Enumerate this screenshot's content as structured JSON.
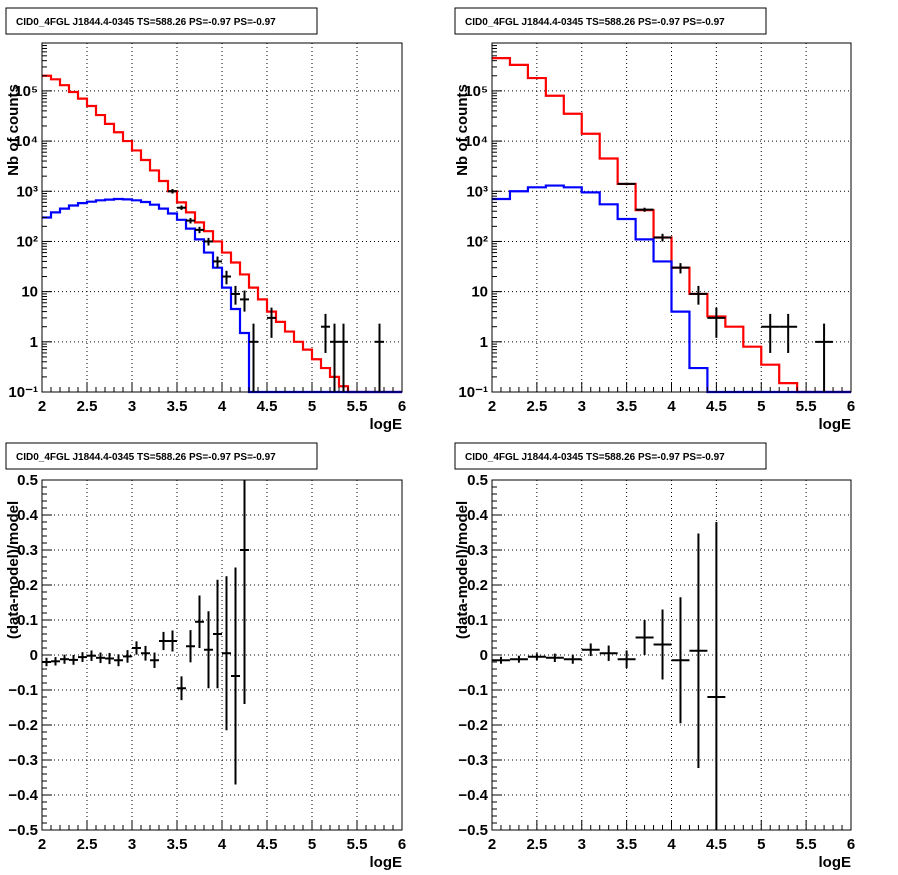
{
  "colors": {
    "model_total": "#ff0000",
    "model_source": "#0000ff",
    "data": "#000000"
  },
  "chart_data": [
    {
      "type": "histogram",
      "title": "CID0_4FGL J1844.4-0345 TS=588.26 PS=-0.97 PS=-0.97",
      "xlabel": "logE",
      "ylabel": "Nb of counts",
      "log_y": true,
      "xlim": [
        2,
        6
      ],
      "ylim": [
        0.1,
        900000
      ],
      "grid": true,
      "x_ticks": [
        2,
        2.5,
        3,
        3.5,
        4,
        4.5,
        5,
        5.5,
        6
      ],
      "x_tick_labels": [
        "2",
        "2.5",
        "3",
        "3.5",
        "4",
        "4.5",
        "5",
        "5.5",
        "6"
      ],
      "y_ticks": [
        0.1,
        1,
        10,
        100,
        1000,
        10000,
        100000
      ],
      "y_tick_labels": [
        "10⁻¹",
        "1",
        "10",
        "10²",
        "10³",
        "10⁴",
        "10⁵"
      ],
      "bin_edges": [
        2.0,
        2.1,
        2.2,
        2.3,
        2.4,
        2.5,
        2.6,
        2.7,
        2.8,
        2.9,
        3.0,
        3.1,
        3.2,
        3.3,
        3.4,
        3.5,
        3.6,
        3.7,
        3.8,
        3.9,
        4.0,
        4.1,
        4.2,
        4.3,
        4.4,
        4.5,
        4.6,
        4.7,
        4.8,
        4.9,
        5.0,
        5.1,
        5.2,
        5.3,
        5.4,
        5.5,
        5.6,
        5.7,
        5.8,
        5.9,
        6.0
      ],
      "series": [
        {
          "role": "model_total",
          "color": "#ff0000",
          "values": [
            200000,
            170000,
            130000,
            95000,
            70000,
            50000,
            33000,
            22000,
            15000,
            10000,
            6500,
            4200,
            2600,
            1600,
            1000,
            600,
            380,
            240,
            160,
            100,
            60,
            38,
            22,
            12,
            7,
            4,
            2.5,
            1.6,
            1,
            0.7,
            0.45,
            0.3,
            0.2,
            0.13,
            0.1,
            0.1,
            0.1,
            0.1,
            0.1,
            0.1
          ]
        },
        {
          "role": "model_source",
          "color": "#0000ff",
          "values": [
            300,
            380,
            450,
            520,
            580,
            620,
            660,
            680,
            700,
            690,
            660,
            610,
            540,
            450,
            360,
            270,
            180,
            110,
            60,
            30,
            12,
            4.5,
            1.5,
            0.1,
            0.1,
            0.1,
            0.1,
            0.1,
            0.1,
            0.1,
            0.1,
            0.1,
            0.1,
            0.1,
            0.1,
            0.1,
            0.1,
            0.1,
            0.1,
            0.1
          ]
        },
        {
          "role": "data",
          "color": "#000000",
          "type": "errorbar",
          "points": [
            {
              "x": 3.45,
              "y": 1000,
              "ylo": 900,
              "yhi": 1110
            },
            {
              "x": 3.55,
              "y": 470,
              "ylo": 425,
              "yhi": 520
            },
            {
              "x": 3.65,
              "y": 260,
              "ylo": 228,
              "yhi": 292
            },
            {
              "x": 3.75,
              "y": 170,
              "ylo": 146,
              "yhi": 196
            },
            {
              "x": 3.85,
              "y": 100,
              "ylo": 83,
              "yhi": 118
            },
            {
              "x": 3.95,
              "y": 40,
              "ylo": 30,
              "yhi": 50
            },
            {
              "x": 4.05,
              "y": 20,
              "ylo": 14,
              "yhi": 26
            },
            {
              "x": 4.15,
              "y": 9,
              "ylo": 5.5,
              "yhi": 13
            },
            {
              "x": 4.25,
              "y": 7,
              "ylo": 4,
              "yhi": 10.5
            },
            {
              "x": 4.35,
              "y": 1,
              "ylo": 0.1,
              "yhi": 2.3
            },
            {
              "x": 4.55,
              "y": 3,
              "ylo": 1.2,
              "yhi": 4.8
            },
            {
              "x": 5.15,
              "y": 2,
              "ylo": 0.6,
              "yhi": 3.6
            },
            {
              "x": 5.25,
              "y": 1,
              "ylo": 0.1,
              "yhi": 2.3
            },
            {
              "x": 5.35,
              "y": 1,
              "ylo": 0.1,
              "yhi": 2.3
            },
            {
              "x": 5.75,
              "y": 1,
              "ylo": 0.1,
              "yhi": 2.3
            }
          ]
        }
      ]
    },
    {
      "type": "histogram",
      "title": "CID0_4FGL J1844.4-0345 TS=588.26 PS=-0.97 PS=-0.97",
      "xlabel": "logE",
      "ylabel": "Nb of counts",
      "log_y": true,
      "xlim": [
        2,
        6
      ],
      "ylim": [
        0.1,
        900000
      ],
      "grid": true,
      "x_ticks": [
        2,
        2.5,
        3,
        3.5,
        4,
        4.5,
        5,
        5.5,
        6
      ],
      "x_tick_labels": [
        "2",
        "2.5",
        "3",
        "3.5",
        "4",
        "4.5",
        "5",
        "5.5",
        "6"
      ],
      "y_ticks": [
        0.1,
        1,
        10,
        100,
        1000,
        10000,
        100000
      ],
      "y_tick_labels": [
        "10⁻¹",
        "1",
        "10",
        "10²",
        "10³",
        "10⁴",
        "10⁵"
      ],
      "bin_edges": [
        2.0,
        2.2,
        2.4,
        2.6,
        2.8,
        3.0,
        3.2,
        3.4,
        3.6,
        3.8,
        4.0,
        4.2,
        4.4,
        4.6,
        4.8,
        5.0,
        5.2,
        5.4,
        5.6,
        5.8,
        6.0
      ],
      "series": [
        {
          "role": "model_total",
          "color": "#ff0000",
          "values": [
            450000,
            330000,
            180000,
            80000,
            35000,
            14000,
            4500,
            1400,
            420,
            120,
            30,
            9,
            3.2,
            2,
            0.8,
            0.35,
            0.15,
            0.1,
            0.1,
            0.1
          ]
        },
        {
          "role": "model_source",
          "color": "#0000ff",
          "values": [
            700,
            1000,
            1200,
            1300,
            1200,
            950,
            550,
            280,
            110,
            40,
            4,
            0.3,
            0.1,
            0.1,
            0.1,
            0.1,
            0.1,
            0.1,
            0.1,
            0.1
          ]
        },
        {
          "role": "data",
          "color": "#000000",
          "type": "errorbar",
          "points": [
            {
              "x": 3.5,
              "y": 1400,
              "ylo": 1320,
              "yhi": 1480
            },
            {
              "x": 3.7,
              "y": 430,
              "ylo": 390,
              "yhi": 470
            },
            {
              "x": 3.9,
              "y": 120,
              "ylo": 100,
              "yhi": 142
            },
            {
              "x": 4.1,
              "y": 30,
              "ylo": 23,
              "yhi": 37
            },
            {
              "x": 4.3,
              "y": 9,
              "ylo": 5.5,
              "yhi": 13
            },
            {
              "x": 4.5,
              "y": 3,
              "ylo": 1.2,
              "yhi": 4.8
            },
            {
              "x": 5.1,
              "y": 2,
              "ylo": 0.6,
              "yhi": 3.6
            },
            {
              "x": 5.3,
              "y": 2,
              "ylo": 0.6,
              "yhi": 3.6
            },
            {
              "x": 5.7,
              "y": 1,
              "ylo": 0.1,
              "yhi": 2.3
            }
          ]
        }
      ]
    },
    {
      "type": "errorbar",
      "title": "CID0_4FGL J1844.4-0345 TS=588.26 PS=-0.97 PS=-0.97",
      "xlabel": "logE",
      "ylabel": "(data-model)/model",
      "log_y": false,
      "xlim": [
        2,
        6
      ],
      "ylim": [
        -0.5,
        0.5
      ],
      "grid": true,
      "x_ticks": [
        2,
        2.5,
        3,
        3.5,
        4,
        4.5,
        5,
        5.5,
        6
      ],
      "x_tick_labels": [
        "2",
        "2.5",
        "3",
        "3.5",
        "4",
        "4.5",
        "5",
        "5.5",
        "6"
      ],
      "y_ticks": [
        -0.5,
        -0.4,
        -0.3,
        -0.2,
        -0.1,
        0,
        0.1,
        0.2,
        0.3,
        0.4,
        0.5
      ],
      "y_tick_labels": [
        "−0.5",
        "−0.4",
        "−0.3",
        "−0.2",
        "−0.1",
        "0",
        "0.1",
        "0.2",
        "0.3",
        "0.4",
        "0.5"
      ],
      "series": [
        {
          "role": "data",
          "color": "#000000",
          "points": [
            {
              "x": 2.05,
              "y": -0.02,
              "err": 0.012
            },
            {
              "x": 2.15,
              "y": -0.018,
              "err": 0.012
            },
            {
              "x": 2.25,
              "y": -0.012,
              "err": 0.013
            },
            {
              "x": 2.35,
              "y": -0.014,
              "err": 0.014
            },
            {
              "x": 2.45,
              "y": -0.006,
              "err": 0.014
            },
            {
              "x": 2.55,
              "y": -0.002,
              "err": 0.015
            },
            {
              "x": 2.65,
              "y": -0.008,
              "err": 0.015
            },
            {
              "x": 2.75,
              "y": -0.01,
              "err": 0.016
            },
            {
              "x": 2.85,
              "y": -0.015,
              "err": 0.017
            },
            {
              "x": 2.95,
              "y": -0.004,
              "err": 0.018
            },
            {
              "x": 3.05,
              "y": 0.02,
              "err": 0.019
            },
            {
              "x": 3.15,
              "y": 0.005,
              "err": 0.021
            },
            {
              "x": 3.25,
              "y": -0.015,
              "err": 0.022
            },
            {
              "x": 3.35,
              "y": 0.04,
              "err": 0.026
            },
            {
              "x": 3.45,
              "y": 0.04,
              "err": 0.03
            },
            {
              "x": 3.55,
              "y": -0.095,
              "err": 0.034
            },
            {
              "x": 3.65,
              "y": 0.025,
              "err": 0.046
            },
            {
              "x": 3.75,
              "y": 0.095,
              "err": 0.075
            },
            {
              "x": 3.85,
              "y": 0.015,
              "err": 0.11
            },
            {
              "x": 3.95,
              "y": 0.06,
              "err": 0.155
            },
            {
              "x": 4.05,
              "y": 0.005,
              "err": 0.22
            },
            {
              "x": 4.15,
              "y": -0.06,
              "err": 0.31
            },
            {
              "x": 4.25,
              "y": 0.3,
              "err": 0.44
            }
          ]
        }
      ]
    },
    {
      "type": "errorbar",
      "title": "CID0_4FGL J1844.4-0345 TS=588.26 PS=-0.97 PS=-0.97",
      "xlabel": "logE",
      "ylabel": "(data-model)/model",
      "log_y": false,
      "xlim": [
        2,
        6
      ],
      "ylim": [
        -0.5,
        0.5
      ],
      "grid": true,
      "x_ticks": [
        2,
        2.5,
        3,
        3.5,
        4,
        4.5,
        5,
        5.5,
        6
      ],
      "x_tick_labels": [
        "2",
        "2.5",
        "3",
        "3.5",
        "4",
        "4.5",
        "5",
        "5.5",
        "6"
      ],
      "y_ticks": [
        -0.5,
        -0.4,
        -0.3,
        -0.2,
        -0.1,
        0,
        0.1,
        0.2,
        0.3,
        0.4,
        0.5
      ],
      "y_tick_labels": [
        "−0.5",
        "−0.4",
        "−0.3",
        "−0.2",
        "−0.1",
        "0",
        "0.1",
        "0.2",
        "0.3",
        "0.4",
        "0.5"
      ],
      "series": [
        {
          "role": "data",
          "color": "#000000",
          "points": [
            {
              "x": 2.1,
              "y": -0.015,
              "err": 0.01
            },
            {
              "x": 2.3,
              "y": -0.012,
              "err": 0.01
            },
            {
              "x": 2.5,
              "y": -0.005,
              "err": 0.01
            },
            {
              "x": 2.7,
              "y": -0.008,
              "err": 0.012
            },
            {
              "x": 2.9,
              "y": -0.012,
              "err": 0.013
            },
            {
              "x": 3.1,
              "y": 0.015,
              "err": 0.018
            },
            {
              "x": 3.3,
              "y": 0.005,
              "err": 0.022
            },
            {
              "x": 3.5,
              "y": -0.012,
              "err": 0.025
            },
            {
              "x": 3.7,
              "y": 0.05,
              "err": 0.05
            },
            {
              "x": 3.9,
              "y": 0.03,
              "err": 0.1
            },
            {
              "x": 4.1,
              "y": -0.015,
              "err": 0.18
            },
            {
              "x": 4.3,
              "y": 0.012,
              "err": 0.335
            },
            {
              "x": 4.5,
              "y": -0.12,
              "err": 0.5
            }
          ]
        }
      ]
    }
  ]
}
